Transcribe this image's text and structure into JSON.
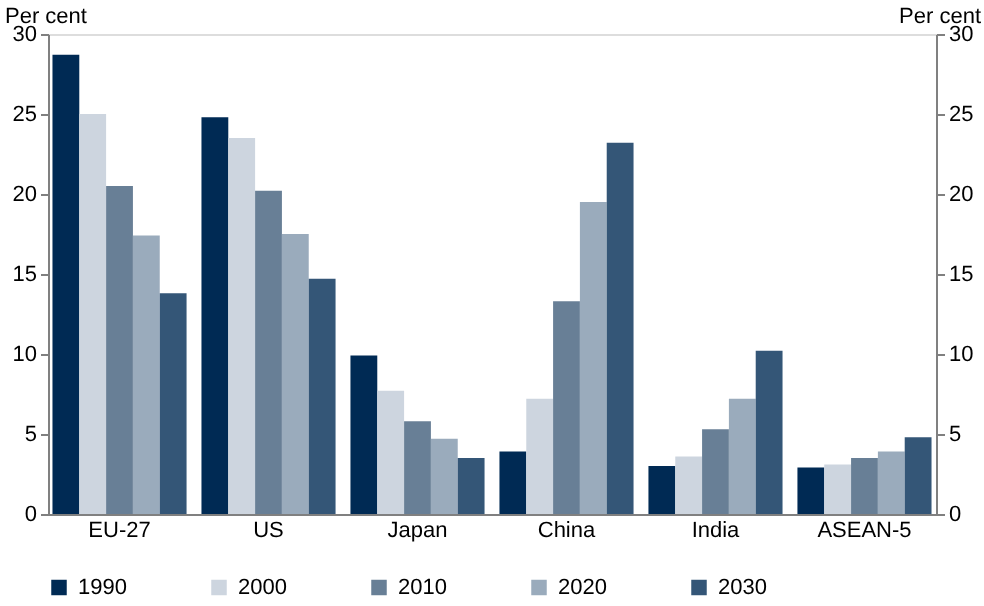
{
  "chart_data": {
    "type": "bar",
    "ylabel": "Per cent",
    "y2label": "Per cent",
    "categories": [
      "EU-27",
      "US",
      "Japan",
      "China",
      "India",
      "ASEAN-5"
    ],
    "series": [
      {
        "name": "1990",
        "color": "#002a54",
        "values": [
          28.7,
          24.8,
          9.9,
          3.9,
          3.0,
          2.9
        ]
      },
      {
        "name": "2000",
        "color": "#cdd5df",
        "values": [
          25.0,
          23.5,
          7.7,
          7.2,
          3.6,
          3.1
        ]
      },
      {
        "name": "2010",
        "color": "#687f96",
        "values": [
          20.5,
          20.2,
          5.8,
          13.3,
          5.3,
          3.5
        ]
      },
      {
        "name": "2020",
        "color": "#9aabbc",
        "values": [
          17.4,
          17.5,
          4.7,
          19.5,
          7.2,
          3.9
        ]
      },
      {
        "name": "2030",
        "color": "#345677",
        "values": [
          13.8,
          14.7,
          3.5,
          23.2,
          10.2,
          4.8
        ]
      }
    ],
    "ylim": [
      0,
      30
    ],
    "yticks": [
      0,
      5,
      10,
      15,
      20,
      25,
      30
    ],
    "y2lim": [
      0,
      30
    ],
    "y2ticks": [
      0,
      5,
      10,
      15,
      20,
      25,
      30
    ],
    "legend": "bottom",
    "grid": false
  }
}
